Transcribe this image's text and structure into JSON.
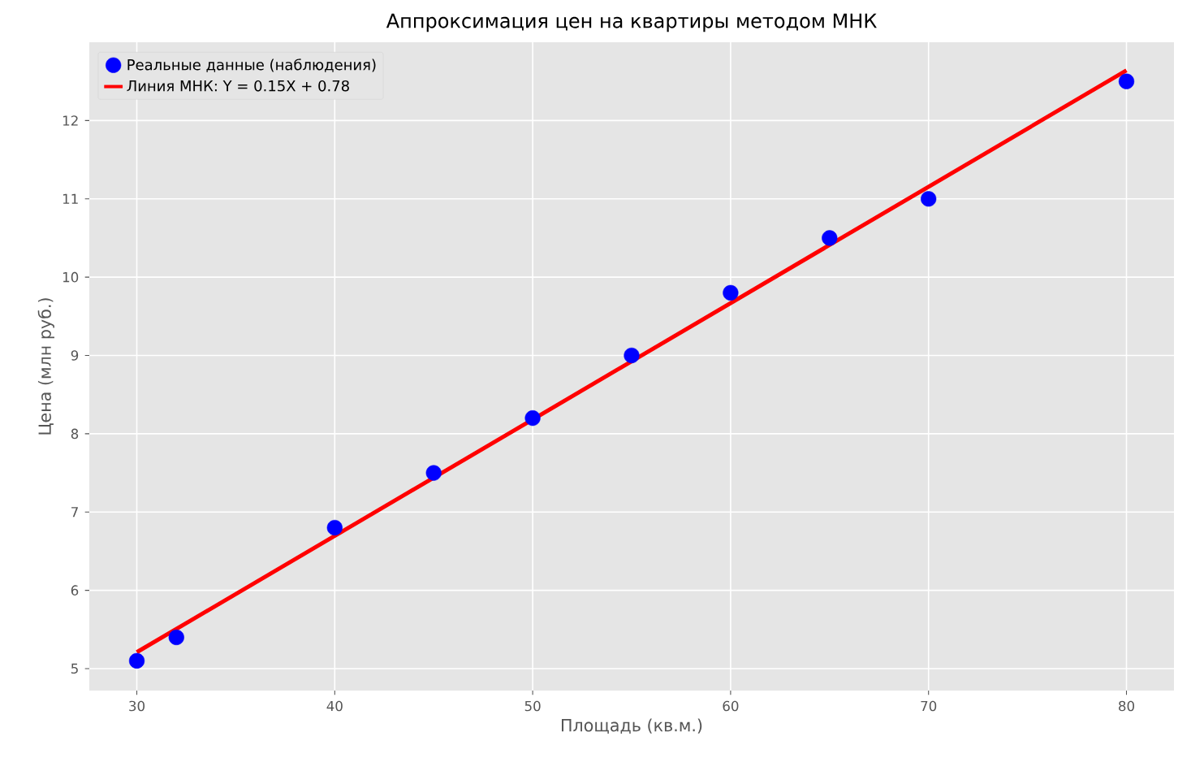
{
  "chart_data": {
    "type": "scatter",
    "title": "Аппроксимация цен на квартиры методом МНК",
    "xlabel": "Площадь (кв.м.)",
    "ylabel": "Цена (млн руб.)",
    "xlim": [
      27.6,
      82.4
    ],
    "ylim": [
      4.72,
      13.0
    ],
    "xticks": [
      30,
      40,
      50,
      60,
      70,
      80
    ],
    "yticks": [
      5,
      6,
      7,
      8,
      9,
      10,
      11,
      12
    ],
    "x": [
      30,
      32,
      40,
      45,
      50,
      55,
      60,
      65,
      70,
      80
    ],
    "series": [
      {
        "name": "Реальные данные (наблюдения)",
        "color": "#0000ff",
        "marker": "circle",
        "values": [
          5.1,
          5.4,
          6.8,
          7.5,
          8.2,
          9.0,
          9.8,
          10.5,
          11.0,
          12.5
        ]
      },
      {
        "name": "Линия МНК: Y = 0.15X + 0.78",
        "type": "line",
        "color": "#ff0000",
        "marker": "none",
        "x": [
          30,
          80
        ],
        "values": [
          5.21,
          12.64
        ]
      }
    ],
    "grid": true,
    "legend": "top left"
  }
}
